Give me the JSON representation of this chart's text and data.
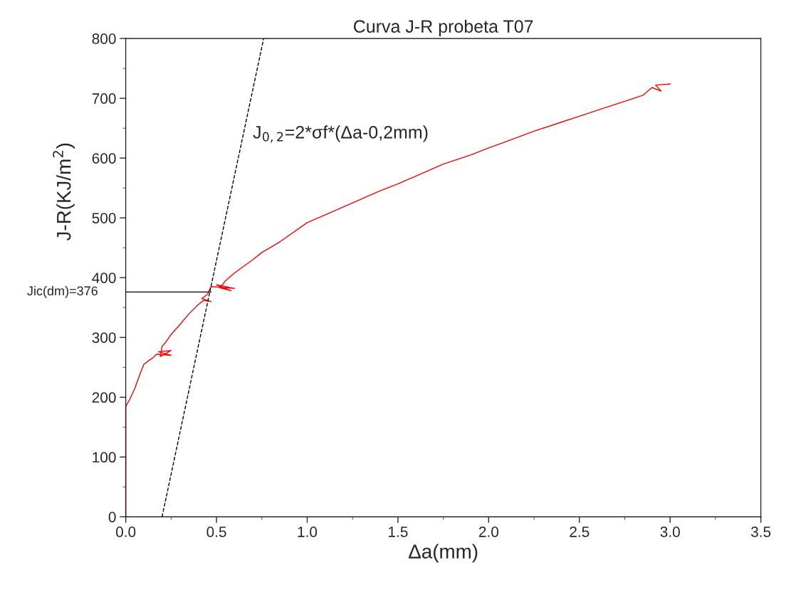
{
  "chart_data": {
    "type": "line",
    "title": "Curva J-R probeta T07",
    "xlabel": "Δa(mm)",
    "ylabel": "J-R(KJ/m$^{2}$)",
    "xlim": [
      0.0,
      3.5
    ],
    "xticks": [
      {
        "value": 0,
        "label": "0.0"
      },
      0.5,
      {
        "value": 1,
        "label": "1.0"
      },
      1.5,
      {
        "value": 2,
        "label": "2.0"
      },
      2.5,
      {
        "value": 3,
        "label": "3.0"
      },
      3.5
    ],
    "ylim": [
      0,
      800
    ],
    "yticks": [
      0,
      100,
      200,
      300,
      400,
      500,
      600,
      700,
      800
    ],
    "grid": false,
    "legend": false,
    "series": [
      {
        "color": "#ff0000",
        "line_style": "solid",
        "x": [
          0.0,
          0.0,
          0.02,
          0.05,
          0.08,
          0.1,
          0.13,
          0.15,
          0.17,
          0.25,
          0.18,
          0.25,
          0.19,
          0.2,
          0.22,
          0.25,
          0.3,
          0.35,
          0.4,
          0.43,
          0.47,
          0.42,
          0.45,
          0.47,
          0.6,
          0.5,
          0.58,
          0.52,
          0.55,
          0.6,
          0.7,
          0.75,
          0.85,
          1.0,
          1.1,
          1.25,
          1.4,
          1.5,
          1.6,
          1.75,
          1.9,
          2.0,
          2.1,
          2.25,
          2.4,
          2.5,
          2.6,
          2.75,
          2.85,
          2.9,
          2.95,
          2.92,
          3.0
        ],
        "values": [
          0,
          185,
          195,
          215,
          240,
          255,
          262,
          266,
          272,
          270,
          276,
          278,
          268,
          285,
          292,
          305,
          322,
          340,
          355,
          362,
          360,
          365,
          372,
          385,
          382,
          388,
          378,
          383,
          395,
          408,
          430,
          442,
          460,
          492,
          505,
          525,
          545,
          557,
          570,
          590,
          605,
          617,
          628,
          645,
          660,
          670,
          680,
          695,
          705,
          718,
          712,
          722,
          724
        ]
      },
      {
        "color": "#000000",
        "line_style": "dashed",
        "x": [
          0.2,
          0.76
        ],
        "values": [
          0,
          800
        ]
      },
      {
        "color": "#000000",
        "line_style": "solid",
        "x": [
          0.0,
          0.47
        ],
        "values": [
          376,
          376
        ]
      }
    ],
    "annotations": [
      "J$_{0,2}$=2*σf*(Δa-0,2mm)",
      {
        "text": "Jic(dm)=376",
        "x": 0.0,
        "y": 376
      }
    ]
  }
}
